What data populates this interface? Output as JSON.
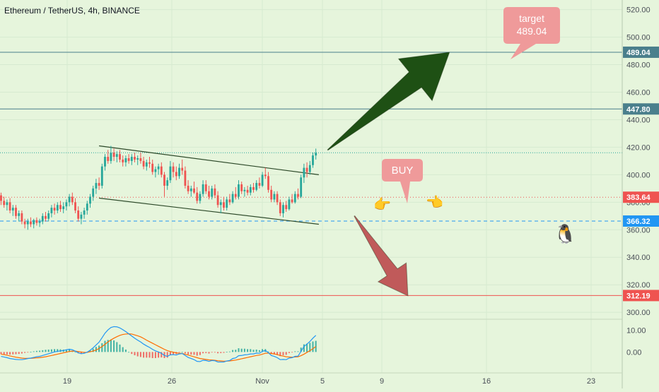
{
  "header": {
    "title": "Ethereum / TetherUS, 4h, BINANCE"
  },
  "colors": {
    "background": "#e6f5dc",
    "up": "#26a69a",
    "down": "#ef5350",
    "macd": "#2196f3",
    "signal": "#ff6d00",
    "green_arrow": "#1e5014",
    "red_arrow": "#c05a5a",
    "bubble": "#ef9a9a"
  },
  "price_axis": {
    "ticks": [
      "520.00",
      "500.00",
      "480.00",
      "460.00",
      "440.00",
      "420.00",
      "400.00",
      "380.00",
      "360.00",
      "340.00",
      "320.00",
      "300.00"
    ]
  },
  "macd_axis": {
    "ticks": [
      "10.00",
      "0.00"
    ]
  },
  "time_axis": {
    "labels": [
      "19",
      "26",
      "Nov",
      "5",
      "9",
      "16",
      "23"
    ]
  },
  "price_tags": [
    {
      "label": "489.04",
      "value": 489.04,
      "color": "#4a7f8c",
      "line": "solid"
    },
    {
      "label": "447.80",
      "value": 447.8,
      "color": "#4a7f8c",
      "line": "solid"
    },
    {
      "label": "383.64",
      "value": 383.64,
      "color": "#ef5350",
      "line": "dotted"
    },
    {
      "label": "366.32",
      "value": 366.32,
      "color": "#2196f3",
      "line": "dashed"
    },
    {
      "label": "312.19",
      "value": 312.19,
      "color": "#ef5350",
      "line": "solid"
    }
  ],
  "annotations": {
    "target_line1": "target",
    "target_line2": "489.04",
    "buy": "BUY",
    "hand_right": "👉",
    "hand_left": "👈",
    "penguin": "🐧"
  },
  "chart_data": {
    "type": "candlestick",
    "title": "Ethereum / TetherUS, 4h, BINANCE",
    "interval": "4h",
    "exchange": "BINANCE",
    "price_range": [
      297,
      527
    ],
    "macd_range": [
      -7,
      14
    ],
    "x_labels": [
      "19",
      "26",
      "Nov",
      "5",
      "9",
      "16",
      "23"
    ],
    "candles": [
      {
        "o": 385,
        "h": 387,
        "l": 378,
        "c": 381
      },
      {
        "o": 381,
        "h": 384,
        "l": 376,
        "c": 378
      },
      {
        "o": 378,
        "h": 382,
        "l": 374,
        "c": 380
      },
      {
        "o": 380,
        "h": 383,
        "l": 372,
        "c": 374
      },
      {
        "o": 374,
        "h": 378,
        "l": 370,
        "c": 376
      },
      {
        "o": 376,
        "h": 378,
        "l": 368,
        "c": 370
      },
      {
        "o": 370,
        "h": 374,
        "l": 366,
        "c": 372
      },
      {
        "o": 372,
        "h": 374,
        "l": 364,
        "c": 366
      },
      {
        "o": 366,
        "h": 368,
        "l": 361,
        "c": 364
      },
      {
        "o": 364,
        "h": 368,
        "l": 360,
        "c": 366
      },
      {
        "o": 366,
        "h": 369,
        "l": 362,
        "c": 364
      },
      {
        "o": 364,
        "h": 368,
        "l": 361,
        "c": 367
      },
      {
        "o": 367,
        "h": 369,
        "l": 363,
        "c": 365
      },
      {
        "o": 365,
        "h": 368,
        "l": 362,
        "c": 366
      },
      {
        "o": 366,
        "h": 372,
        "l": 364,
        "c": 370
      },
      {
        "o": 370,
        "h": 373,
        "l": 366,
        "c": 368
      },
      {
        "o": 368,
        "h": 374,
        "l": 366,
        "c": 372
      },
      {
        "o": 372,
        "h": 378,
        "l": 369,
        "c": 376
      },
      {
        "o": 376,
        "h": 379,
        "l": 371,
        "c": 374
      },
      {
        "o": 374,
        "h": 380,
        "l": 372,
        "c": 378
      },
      {
        "o": 378,
        "h": 381,
        "l": 373,
        "c": 375
      },
      {
        "o": 375,
        "h": 380,
        "l": 372,
        "c": 377
      },
      {
        "o": 377,
        "h": 382,
        "l": 374,
        "c": 380
      },
      {
        "o": 380,
        "h": 386,
        "l": 377,
        "c": 384
      },
      {
        "o": 384,
        "h": 387,
        "l": 378,
        "c": 380
      },
      {
        "o": 380,
        "h": 383,
        "l": 372,
        "c": 374
      },
      {
        "o": 374,
        "h": 377,
        "l": 366,
        "c": 368
      },
      {
        "o": 368,
        "h": 373,
        "l": 364,
        "c": 371
      },
      {
        "o": 371,
        "h": 376,
        "l": 368,
        "c": 374
      },
      {
        "o": 374,
        "h": 381,
        "l": 371,
        "c": 379
      },
      {
        "o": 379,
        "h": 386,
        "l": 376,
        "c": 384
      },
      {
        "o": 384,
        "h": 392,
        "l": 381,
        "c": 390
      },
      {
        "o": 390,
        "h": 397,
        "l": 386,
        "c": 394
      },
      {
        "o": 394,
        "h": 398,
        "l": 389,
        "c": 392
      },
      {
        "o": 392,
        "h": 408,
        "l": 390,
        "c": 406
      },
      {
        "o": 406,
        "h": 415,
        "l": 403,
        "c": 413
      },
      {
        "o": 413,
        "h": 418,
        "l": 408,
        "c": 410
      },
      {
        "o": 410,
        "h": 421,
        "l": 408,
        "c": 416
      },
      {
        "o": 416,
        "h": 419,
        "l": 410,
        "c": 413
      },
      {
        "o": 413,
        "h": 417,
        "l": 409,
        "c": 415
      },
      {
        "o": 415,
        "h": 418,
        "l": 409,
        "c": 411
      },
      {
        "o": 411,
        "h": 414,
        "l": 406,
        "c": 409
      },
      {
        "o": 409,
        "h": 414,
        "l": 406,
        "c": 412
      },
      {
        "o": 412,
        "h": 415,
        "l": 408,
        "c": 410
      },
      {
        "o": 410,
        "h": 415,
        "l": 407,
        "c": 413
      },
      {
        "o": 413,
        "h": 416,
        "l": 409,
        "c": 411
      },
      {
        "o": 411,
        "h": 414,
        "l": 407,
        "c": 412
      },
      {
        "o": 412,
        "h": 416,
        "l": 408,
        "c": 410
      },
      {
        "o": 410,
        "h": 413,
        "l": 404,
        "c": 406
      },
      {
        "o": 406,
        "h": 411,
        "l": 403,
        "c": 409
      },
      {
        "o": 409,
        "h": 413,
        "l": 405,
        "c": 408
      },
      {
        "o": 408,
        "h": 411,
        "l": 400,
        "c": 402
      },
      {
        "o": 402,
        "h": 406,
        "l": 398,
        "c": 404
      },
      {
        "o": 404,
        "h": 408,
        "l": 400,
        "c": 406
      },
      {
        "o": 406,
        "h": 409,
        "l": 398,
        "c": 400
      },
      {
        "o": 400,
        "h": 402,
        "l": 384,
        "c": 392
      },
      {
        "o": 392,
        "h": 398,
        "l": 389,
        "c": 396
      },
      {
        "o": 396,
        "h": 410,
        "l": 394,
        "c": 406
      },
      {
        "o": 406,
        "h": 409,
        "l": 398,
        "c": 402
      },
      {
        "o": 402,
        "h": 406,
        "l": 396,
        "c": 399
      },
      {
        "o": 399,
        "h": 408,
        "l": 397,
        "c": 405
      },
      {
        "o": 405,
        "h": 411,
        "l": 400,
        "c": 403
      },
      {
        "o": 403,
        "h": 406,
        "l": 390,
        "c": 392
      },
      {
        "o": 392,
        "h": 396,
        "l": 386,
        "c": 388
      },
      {
        "o": 388,
        "h": 392,
        "l": 384,
        "c": 390
      },
      {
        "o": 390,
        "h": 395,
        "l": 386,
        "c": 387
      },
      {
        "o": 387,
        "h": 391,
        "l": 379,
        "c": 381
      },
      {
        "o": 381,
        "h": 388,
        "l": 379,
        "c": 386
      },
      {
        "o": 386,
        "h": 396,
        "l": 384,
        "c": 393
      },
      {
        "o": 393,
        "h": 396,
        "l": 386,
        "c": 388
      },
      {
        "o": 388,
        "h": 392,
        "l": 382,
        "c": 384
      },
      {
        "o": 384,
        "h": 392,
        "l": 382,
        "c": 390
      },
      {
        "o": 390,
        "h": 393,
        "l": 383,
        "c": 385
      },
      {
        "o": 385,
        "h": 388,
        "l": 376,
        "c": 378
      },
      {
        "o": 378,
        "h": 382,
        "l": 372,
        "c": 380
      },
      {
        "o": 380,
        "h": 384,
        "l": 374,
        "c": 376
      },
      {
        "o": 376,
        "h": 384,
        "l": 374,
        "c": 382
      },
      {
        "o": 382,
        "h": 386,
        "l": 378,
        "c": 380
      },
      {
        "o": 380,
        "h": 388,
        "l": 379,
        "c": 386
      },
      {
        "o": 386,
        "h": 391,
        "l": 382,
        "c": 384
      },
      {
        "o": 384,
        "h": 396,
        "l": 382,
        "c": 393
      },
      {
        "o": 393,
        "h": 395,
        "l": 386,
        "c": 388
      },
      {
        "o": 388,
        "h": 391,
        "l": 384,
        "c": 389
      },
      {
        "o": 389,
        "h": 392,
        "l": 385,
        "c": 387
      },
      {
        "o": 387,
        "h": 393,
        "l": 385,
        "c": 391
      },
      {
        "o": 391,
        "h": 394,
        "l": 387,
        "c": 389
      },
      {
        "o": 389,
        "h": 396,
        "l": 388,
        "c": 394
      },
      {
        "o": 394,
        "h": 398,
        "l": 390,
        "c": 392
      },
      {
        "o": 392,
        "h": 402,
        "l": 391,
        "c": 400
      },
      {
        "o": 400,
        "h": 405,
        "l": 397,
        "c": 399
      },
      {
        "o": 399,
        "h": 402,
        "l": 387,
        "c": 389
      },
      {
        "o": 389,
        "h": 392,
        "l": 380,
        "c": 382
      },
      {
        "o": 382,
        "h": 388,
        "l": 380,
        "c": 386
      },
      {
        "o": 386,
        "h": 388,
        "l": 378,
        "c": 380
      },
      {
        "o": 380,
        "h": 382,
        "l": 370,
        "c": 372
      },
      {
        "o": 372,
        "h": 380,
        "l": 369,
        "c": 378
      },
      {
        "o": 378,
        "h": 381,
        "l": 373,
        "c": 375
      },
      {
        "o": 375,
        "h": 384,
        "l": 374,
        "c": 382
      },
      {
        "o": 382,
        "h": 386,
        "l": 379,
        "c": 380
      },
      {
        "o": 380,
        "h": 388,
        "l": 379,
        "c": 386
      },
      {
        "o": 386,
        "h": 390,
        "l": 382,
        "c": 384
      },
      {
        "o": 384,
        "h": 400,
        "l": 383,
        "c": 398
      },
      {
        "o": 398,
        "h": 408,
        "l": 394,
        "c": 405
      },
      {
        "o": 405,
        "h": 409,
        "l": 398,
        "c": 402
      },
      {
        "o": 402,
        "h": 410,
        "l": 400,
        "c": 407
      },
      {
        "o": 407,
        "h": 416,
        "l": 405,
        "c": 414
      },
      {
        "o": 414,
        "h": 419,
        "l": 411,
        "c": 416
      }
    ],
    "channel": {
      "upper": [
        {
          "i": 33,
          "p": 421
        },
        {
          "i": 107,
          "p": 400
        }
      ],
      "lower": [
        {
          "i": 33,
          "p": 383
        },
        {
          "i": 107,
          "p": 364
        }
      ]
    },
    "green_arrow": {
      "from": {
        "i": 110,
        "p": 418
      },
      "to": {
        "i": 151,
        "p": 489
      }
    },
    "red_arrow": {
      "from": {
        "i": 119,
        "p": 370
      },
      "to": {
        "i": 137,
        "p": 312
      }
    },
    "macd": [
      -2,
      -2.3,
      -2.6,
      -3,
      -3.2,
      -3.4,
      -3.5,
      -3.5,
      -3.3,
      -3,
      -2.8,
      -2.5,
      -2.2,
      -2,
      -1.6,
      -1.2,
      -0.8,
      -0.4,
      0,
      0.3,
      0.5,
      0.7,
      1.0,
      1.3,
      1.0,
      0.4,
      -0.4,
      -0.8,
      -0.6,
      -0.1,
      0.8,
      1.9,
      3.2,
      4.5,
      6.5,
      8.6,
      10.1,
      11.2,
      11.6,
      11.5,
      11.0,
      10.2,
      9.3,
      8.3,
      7.3,
      6.3,
      5.4,
      4.6,
      3.6,
      2.8,
      2.1,
      1.2,
      0.5,
      0,
      -0.6,
      -1.6,
      -2,
      -1.3,
      -1.2,
      -1.4,
      -0.9,
      -0.7,
      -1.6,
      -2.5,
      -3,
      -3.5,
      -4.3,
      -4.4,
      -3.8,
      -3.9,
      -4.3,
      -3.9,
      -4,
      -4.6,
      -4.6,
      -4.6,
      -4.1,
      -3.9,
      -3,
      -2.7,
      -1.7,
      -1.6,
      -1.3,
      -1.2,
      -0.9,
      -0.9,
      -0.5,
      -0.6,
      0.3,
      0.7,
      -0.3,
      -1.6,
      -2,
      -2.6,
      -3.5,
      -3.4,
      -3.5,
      -2.8,
      -2.6,
      -2,
      -1.9,
      0.3,
      2.5,
      3.6,
      4.8,
      6.3,
      7.6
    ],
    "signal": [
      -1,
      -1.2,
      -1.5,
      -1.8,
      -2.1,
      -2.4,
      -2.6,
      -2.8,
      -2.9,
      -2.9,
      -2.9,
      -2.8,
      -2.7,
      -2.6,
      -2.4,
      -2.2,
      -1.9,
      -1.6,
      -1.3,
      -1.0,
      -0.7,
      -0.4,
      -0.1,
      0.2,
      0.4,
      0.4,
      0.2,
      0,
      -0.2,
      -0.2,
      0.1,
      0.4,
      0.9,
      1.6,
      2.5,
      3.5,
      4.6,
      5.5,
      6.3,
      7.0,
      7.6,
      8.0,
      8.2,
      8.3,
      8.2,
      7.8,
      7.4,
      6.9,
      6.2,
      5.4,
      4.7,
      4.0,
      3.3,
      2.6,
      1.9,
      1.2,
      0.6,
      0.2,
      -0.1,
      -0.4,
      -0.6,
      -0.7,
      -1.0,
      -1.4,
      -1.8,
      -2.2,
      -2.6,
      -3.0,
      -3.2,
      -3.4,
      -3.6,
      -3.7,
      -3.8,
      -4.0,
      -4.1,
      -4.2,
      -4.2,
      -4.1,
      -3.9,
      -3.7,
      -3.4,
      -3.1,
      -2.8,
      -2.5,
      -2.2,
      -1.9,
      -1.6,
      -1.4,
      -1.0,
      -0.6,
      -0.5,
      -0.7,
      -0.9,
      -1.2,
      -1.6,
      -1.9,
      -2.2,
      -2.3,
      -2.4,
      -2.3,
      -2.2,
      -1.7,
      -1.0,
      -0.2,
      0.6,
      1.5,
      2.5
    ]
  }
}
